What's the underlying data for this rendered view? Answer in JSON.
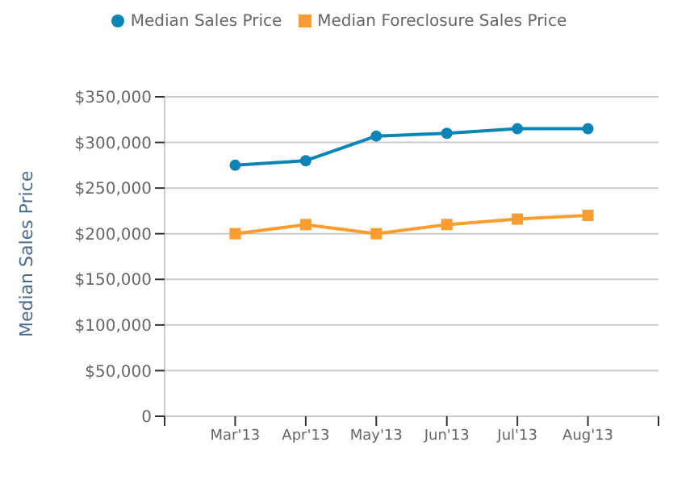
{
  "chart_data": {
    "type": "line",
    "categories": [
      "Mar'13",
      "Apr'13",
      "May'13",
      "Jun'13",
      "Jul'13",
      "Aug'13"
    ],
    "series": [
      {
        "name": "Median Sales Price",
        "color": "#0a85b5",
        "marker": "circle",
        "values": [
          275000,
          280000,
          307000,
          310000,
          315000,
          315000
        ]
      },
      {
        "name": "Median Foreclosure Sales Price",
        "color": "#f99d31",
        "marker": "square",
        "values": [
          200000,
          210000,
          200000,
          210000,
          216000,
          220000
        ]
      }
    ],
    "ylabel": "Median Sales Price",
    "ylim": [
      0,
      350000
    ],
    "yticks": [
      {
        "value": 0,
        "label": "0"
      },
      {
        "value": 50000,
        "label": "$50,000"
      },
      {
        "value": 100000,
        "label": "$100,000"
      },
      {
        "value": 150000,
        "label": "$150,000"
      },
      {
        "value": 200000,
        "label": "$200,000"
      },
      {
        "value": 250000,
        "label": "$250,000"
      },
      {
        "value": 300000,
        "label": "$300,000"
      },
      {
        "value": 350000,
        "label": "$350,000"
      }
    ],
    "grid": "y",
    "legend": "top",
    "line_style": "solid"
  }
}
